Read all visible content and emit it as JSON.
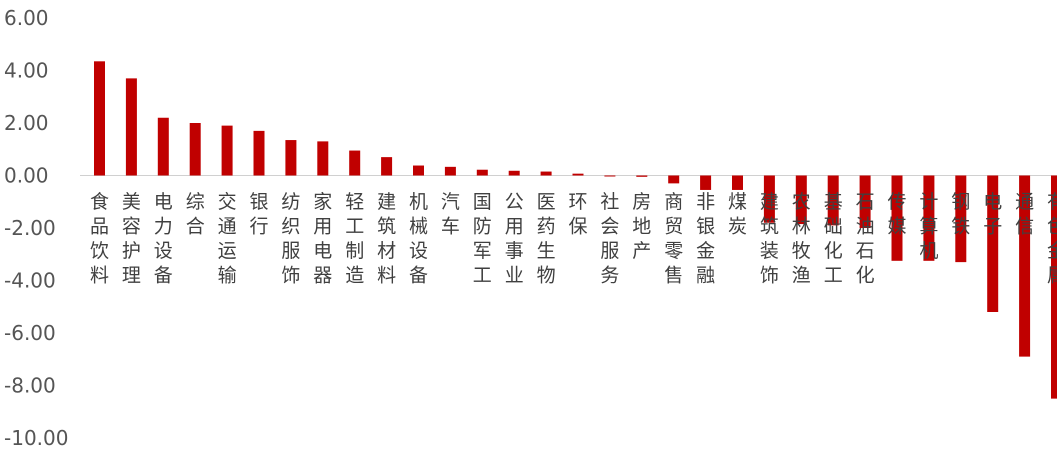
{
  "chart_data": {
    "type": "bar",
    "title": "",
    "xlabel": "",
    "ylabel": "",
    "ylim": [
      -10,
      6
    ],
    "yticks": [
      "6.00",
      "4.00",
      "2.00",
      "0.00",
      "-2.00",
      "-4.00",
      "-6.00",
      "-8.00",
      "-10.00"
    ],
    "grid": false,
    "bar_color": "#C00000",
    "categories": [
      "食品饮料",
      "美容护理",
      "电力设备",
      "综合",
      "交通运输",
      "银行",
      "纺织服饰",
      "家用电器",
      "轻工制造",
      "建筑材料",
      "机械设备",
      "汽车",
      "国防军工",
      "公用事业",
      "医药生物",
      "环保",
      "社会服务",
      "房地产",
      "商贸零售",
      "非银金融",
      "煤炭",
      "建筑装饰",
      "农林牧渔",
      "基础化工",
      "石油石化",
      "传媒",
      "计算机",
      "钢铁",
      "电子",
      "通信",
      "有色金属"
    ],
    "values": [
      4.35,
      3.7,
      2.2,
      2.0,
      1.9,
      1.7,
      1.35,
      1.3,
      0.95,
      0.7,
      0.38,
      0.33,
      0.22,
      0.18,
      0.15,
      0.07,
      -0.02,
      -0.05,
      -0.3,
      -0.55,
      -0.55,
      -1.8,
      -1.85,
      -1.9,
      -2.0,
      -3.25,
      -3.25,
      -3.3,
      -5.2,
      -6.9,
      -8.5
    ]
  }
}
